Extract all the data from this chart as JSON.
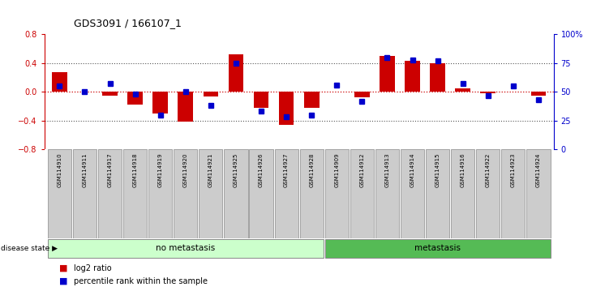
{
  "title": "GDS3091 / 166107_1",
  "samples": [
    "GSM114910",
    "GSM114911",
    "GSM114917",
    "GSM114918",
    "GSM114919",
    "GSM114920",
    "GSM114921",
    "GSM114925",
    "GSM114926",
    "GSM114927",
    "GSM114928",
    "GSM114909",
    "GSM114912",
    "GSM114913",
    "GSM114914",
    "GSM114915",
    "GSM114916",
    "GSM114922",
    "GSM114923",
    "GSM114924"
  ],
  "log2_ratio": [
    0.28,
    0.0,
    -0.05,
    -0.18,
    -0.3,
    -0.42,
    -0.07,
    0.52,
    -0.22,
    -0.46,
    -0.22,
    0.0,
    -0.08,
    0.5,
    0.43,
    0.4,
    0.05,
    -0.02,
    0.0,
    -0.05
  ],
  "percentile": [
    55,
    50,
    57,
    48,
    30,
    50,
    38,
    75,
    33,
    28,
    30,
    56,
    42,
    80,
    78,
    77,
    57,
    47,
    55,
    43
  ],
  "no_metastasis_count": 11,
  "metastasis_count": 9,
  "ylim_left": [
    -0.8,
    0.8
  ],
  "yticks_left": [
    -0.8,
    -0.4,
    0.0,
    0.4,
    0.8
  ],
  "yticks_right": [
    0,
    25,
    50,
    75,
    100
  ],
  "ytick_labels_right": [
    "0",
    "25",
    "50",
    "75",
    "100%"
  ],
  "bar_color_red": "#CC0000",
  "bar_color_blue": "#0000CC",
  "dotted_line_color": "#555555",
  "zero_line_color": "#CC0000",
  "no_metastasis_color": "#CCFFCC",
  "metastasis_color": "#55BB55",
  "label_bg_color": "#CCCCCC",
  "label_border_color": "#888888",
  "legend_log2": "log2 ratio",
  "legend_pct": "percentile rank within the sample",
  "bar_width": 0.6
}
